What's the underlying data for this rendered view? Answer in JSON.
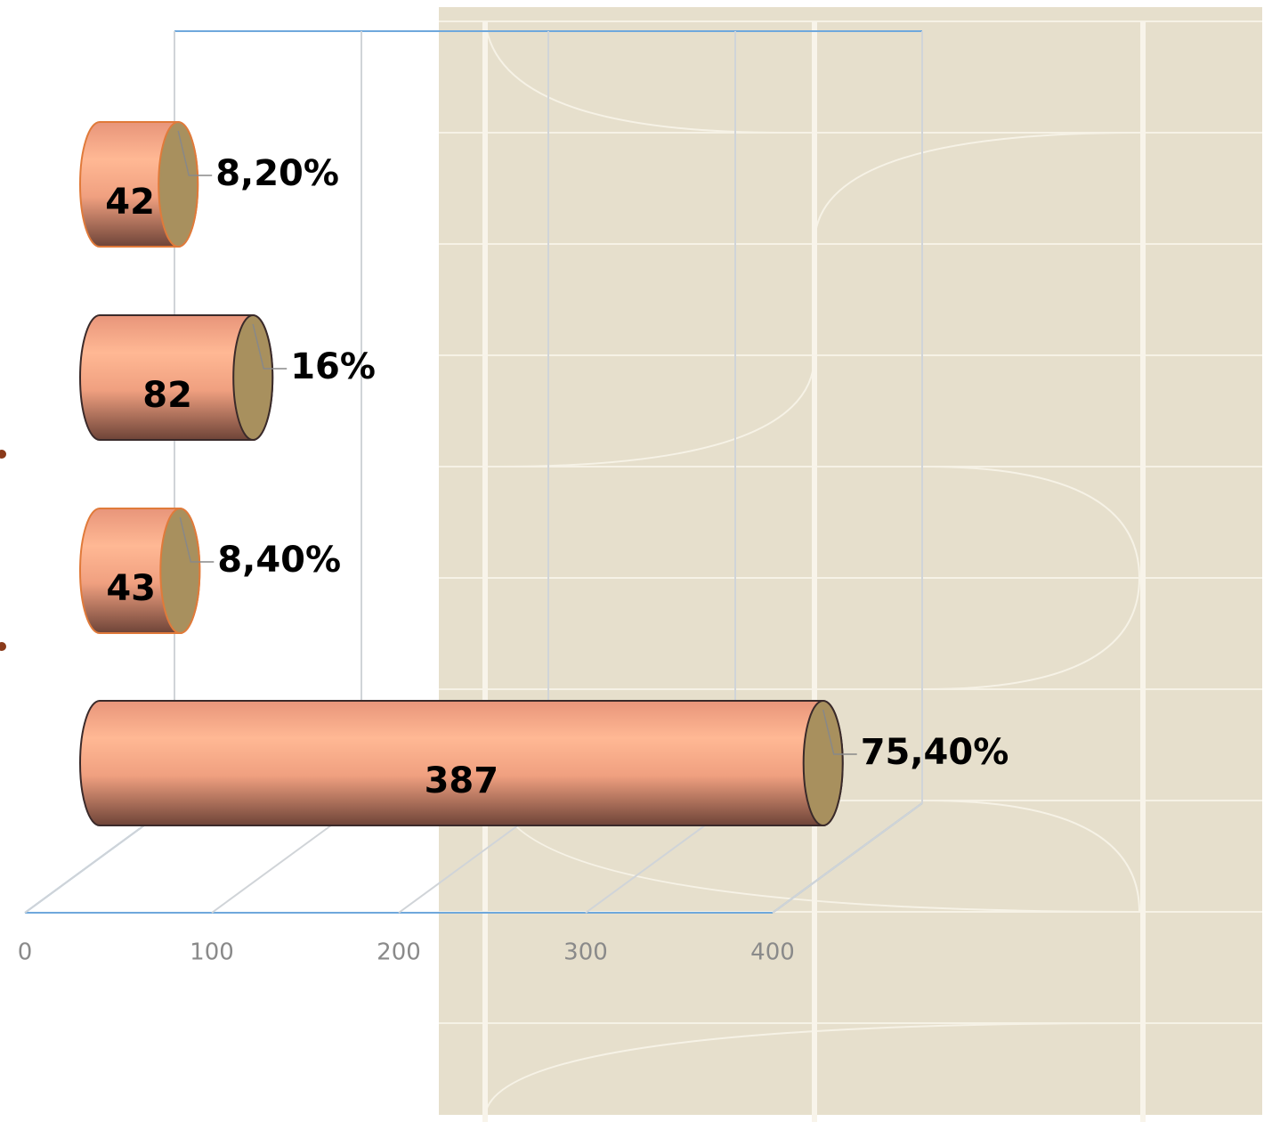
{
  "chart_data": {
    "type": "bar3d",
    "values": [
      387,
      43,
      82,
      42
    ],
    "percent_values": [
      75.4,
      8.4,
      16,
      8.2
    ],
    "percent_labels": [
      "75,40%",
      "8,40%",
      "16%",
      "8,20%"
    ],
    "color": "#f7a682",
    "xlim": [
      0,
      400
    ],
    "xticks": [
      0,
      100,
      200,
      300,
      400
    ],
    "grid": true
  }
}
